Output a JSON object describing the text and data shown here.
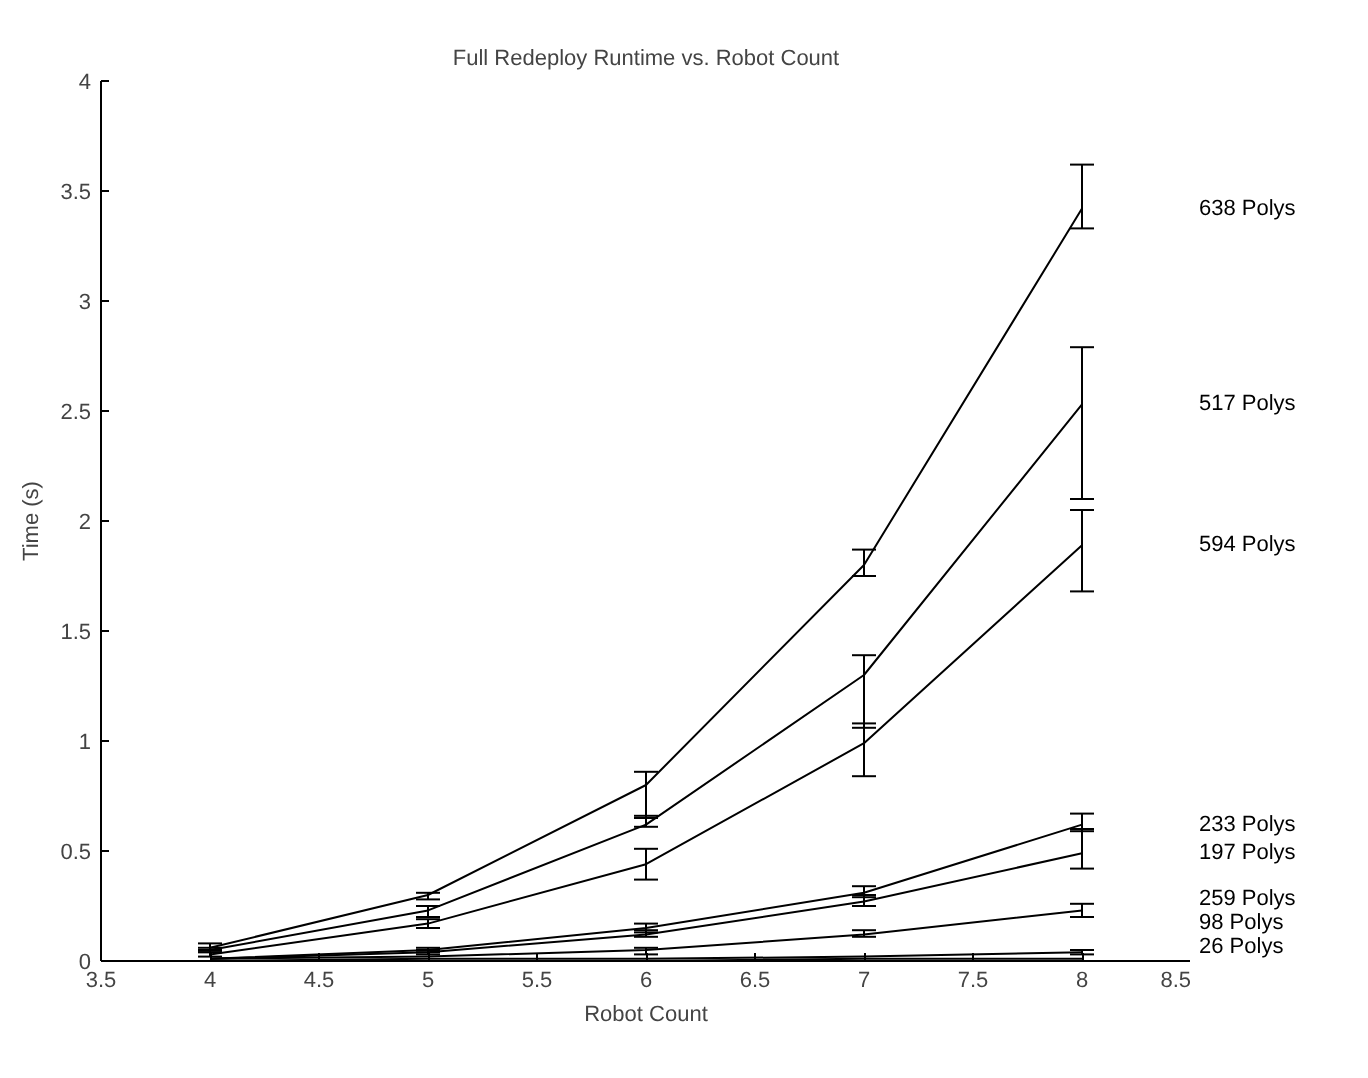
{
  "chart_data": {
    "type": "line",
    "title": "Full Redeploy Runtime vs. Robot Count",
    "xlabel": "Robot Count",
    "ylabel": "Time (s)",
    "x": [
      4,
      5,
      6,
      7,
      8
    ],
    "xlim": [
      3.5,
      8.5
    ],
    "xticks": [
      3.5,
      4,
      4.5,
      5,
      5.5,
      6,
      6.5,
      7,
      7.5,
      8,
      8.5
    ],
    "ylim": [
      0,
      4
    ],
    "yticks": [
      0,
      0.5,
      1,
      1.5,
      2,
      2.5,
      3,
      3.5,
      4
    ],
    "grid": false,
    "marker": "none",
    "line_style": "solid",
    "series": [
      {
        "name": "638 Polys",
        "color": "#000000",
        "values": [
          0.06,
          0.3,
          0.8,
          1.8,
          3.42
        ],
        "errors": [
          [
            0.05,
            0.08
          ],
          [
            0.28,
            0.31
          ],
          [
            0.65,
            0.86
          ],
          [
            1.75,
            1.87
          ],
          [
            3.33,
            3.62
          ]
        ]
      },
      {
        "name": "517 Polys",
        "color": "#000000",
        "values": [
          0.05,
          0.23,
          0.62,
          1.3,
          2.53
        ],
        "errors": [
          [
            0.04,
            0.06
          ],
          [
            0.2,
            0.25
          ],
          [
            0.61,
            0.66
          ],
          [
            1.06,
            1.39
          ],
          [
            2.1,
            2.79
          ]
        ]
      },
      {
        "name": "594 Polys",
        "color": "#000000",
        "values": [
          0.03,
          0.17,
          0.44,
          0.99,
          1.89
        ],
        "errors": [
          [
            0.02,
            0.04
          ],
          [
            0.15,
            0.19
          ],
          [
            0.37,
            0.51
          ],
          [
            0.84,
            1.08
          ],
          [
            1.68,
            2.05
          ]
        ]
      },
      {
        "name": "233 Polys",
        "color": "#000000",
        "values": [
          0.01,
          0.05,
          0.15,
          0.31,
          0.62
        ],
        "errors": [
          null,
          [
            0.04,
            0.06
          ],
          [
            0.13,
            0.17
          ],
          [
            0.29,
            0.34
          ],
          [
            0.59,
            0.67
          ]
        ]
      },
      {
        "name": "197 Polys",
        "color": "#000000",
        "values": [
          0.01,
          0.04,
          0.12,
          0.27,
          0.49
        ],
        "errors": [
          null,
          [
            0.03,
            0.05
          ],
          [
            0.11,
            0.14
          ],
          [
            0.25,
            0.3
          ],
          [
            0.42,
            0.6
          ]
        ]
      },
      {
        "name": "259 Polys",
        "color": "#000000",
        "values": [
          0.01,
          0.02,
          0.05,
          0.12,
          0.23
        ],
        "errors": [
          null,
          null,
          [
            0.03,
            0.06
          ],
          [
            0.11,
            0.14
          ],
          [
            0.2,
            0.26
          ]
        ]
      },
      {
        "name": "98 Polys",
        "color": "#000000",
        "values": [
          0,
          0.01,
          0.01,
          0.02,
          0.04
        ],
        "errors": [
          null,
          null,
          null,
          null,
          [
            0.03,
            0.05
          ]
        ]
      },
      {
        "name": "26 Polys",
        "color": "#000000",
        "values": [
          0,
          0,
          0,
          0.01,
          0.01
        ],
        "errors": [
          null,
          null,
          null,
          null,
          null
        ]
      }
    ]
  }
}
